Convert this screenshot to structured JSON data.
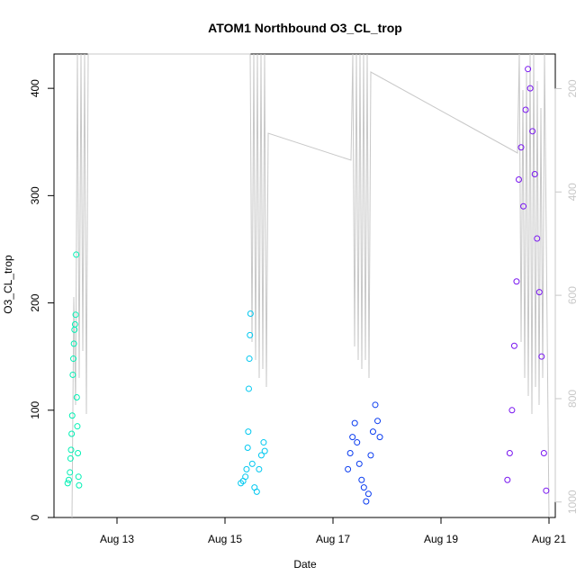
{
  "chart_data": {
    "type": "scatter",
    "title": "ATOM1 Northbound O3_CL_trop",
    "xlabel": "Date",
    "ylabel": "O3_CL_trop",
    "x_range": [
      "2016-08-12T00:00",
      "2016-08-21T04:00"
    ],
    "ylim": [
      0,
      432
    ],
    "x_ticks": [
      "Aug 13",
      "Aug 15",
      "Aug 17",
      "Aug 19",
      "Aug 21"
    ],
    "y_ticks": [
      0,
      100,
      200,
      300,
      400
    ],
    "right_axis": {
      "label": "",
      "ticks": [
        200,
        400,
        600,
        800,
        1000
      ],
      "range_top": 133,
      "range_bottom": 1030,
      "reversed": true,
      "color": "#c8c8c8"
    },
    "grid": false,
    "legend": "none",
    "series": [
      {
        "color": "#00f0b4",
        "points": [
          {
            "x": "2016-08-12T06:00",
            "y": 32
          },
          {
            "x": "2016-08-12T06:30",
            "y": 35
          },
          {
            "x": "2016-08-12T07:00",
            "y": 42
          },
          {
            "x": "2016-08-12T07:15",
            "y": 55
          },
          {
            "x": "2016-08-12T07:30",
            "y": 63
          },
          {
            "x": "2016-08-12T07:45",
            "y": 78
          },
          {
            "x": "2016-08-12T08:00",
            "y": 95
          },
          {
            "x": "2016-08-12T08:15",
            "y": 133
          },
          {
            "x": "2016-08-12T08:30",
            "y": 148
          },
          {
            "x": "2016-08-12T08:45",
            "y": 162
          },
          {
            "x": "2016-08-12T09:00",
            "y": 175
          },
          {
            "x": "2016-08-12T09:15",
            "y": 180
          },
          {
            "x": "2016-08-12T09:30",
            "y": 189
          },
          {
            "x": "2016-08-12T09:45",
            "y": 245
          },
          {
            "x": "2016-08-12T10:00",
            "y": 112
          },
          {
            "x": "2016-08-12T10:15",
            "y": 85
          },
          {
            "x": "2016-08-12T10:30",
            "y": 60
          },
          {
            "x": "2016-08-12T10:45",
            "y": 38
          },
          {
            "x": "2016-08-12T11:00",
            "y": 30
          }
        ]
      },
      {
        "color": "#00c8f0",
        "points": [
          {
            "x": "2016-08-15T10:00",
            "y": 32
          },
          {
            "x": "2016-08-15T11:00",
            "y": 34
          },
          {
            "x": "2016-08-15T12:00",
            "y": 38
          },
          {
            "x": "2016-08-15T12:30",
            "y": 45
          },
          {
            "x": "2016-08-15T13:00",
            "y": 65
          },
          {
            "x": "2016-08-15T13:15",
            "y": 80
          },
          {
            "x": "2016-08-15T13:30",
            "y": 120
          },
          {
            "x": "2016-08-15T13:45",
            "y": 148
          },
          {
            "x": "2016-08-15T14:00",
            "y": 170
          },
          {
            "x": "2016-08-15T14:15",
            "y": 190
          },
          {
            "x": "2016-08-15T15:00",
            "y": 50
          },
          {
            "x": "2016-08-15T16:00",
            "y": 28
          },
          {
            "x": "2016-08-15T17:00",
            "y": 24
          },
          {
            "x": "2016-08-15T18:00",
            "y": 45
          },
          {
            "x": "2016-08-15T19:00",
            "y": 58
          },
          {
            "x": "2016-08-15T20:00",
            "y": 70
          },
          {
            "x": "2016-08-15T20:30",
            "y": 62
          }
        ]
      },
      {
        "color": "#0a3cf0",
        "points": [
          {
            "x": "2016-08-17T09:00",
            "y": 45
          },
          {
            "x": "2016-08-17T10:00",
            "y": 60
          },
          {
            "x": "2016-08-17T11:00",
            "y": 75
          },
          {
            "x": "2016-08-17T12:00",
            "y": 88
          },
          {
            "x": "2016-08-17T13:00",
            "y": 70
          },
          {
            "x": "2016-08-17T14:00",
            "y": 50
          },
          {
            "x": "2016-08-17T15:00",
            "y": 35
          },
          {
            "x": "2016-08-17T16:00",
            "y": 28
          },
          {
            "x": "2016-08-17T17:00",
            "y": 15
          },
          {
            "x": "2016-08-17T18:00",
            "y": 22
          },
          {
            "x": "2016-08-17T19:00",
            "y": 58
          },
          {
            "x": "2016-08-17T20:00",
            "y": 80
          },
          {
            "x": "2016-08-17T21:00",
            "y": 105
          },
          {
            "x": "2016-08-17T22:00",
            "y": 90
          },
          {
            "x": "2016-08-17T23:00",
            "y": 75
          }
        ]
      },
      {
        "color": "#7814f0",
        "points": [
          {
            "x": "2016-08-20T07:00",
            "y": 35
          },
          {
            "x": "2016-08-20T08:00",
            "y": 60
          },
          {
            "x": "2016-08-20T09:00",
            "y": 100
          },
          {
            "x": "2016-08-20T10:00",
            "y": 160
          },
          {
            "x": "2016-08-20T11:00",
            "y": 220
          },
          {
            "x": "2016-08-20T12:00",
            "y": 315
          },
          {
            "x": "2016-08-20T13:00",
            "y": 345
          },
          {
            "x": "2016-08-20T14:00",
            "y": 290
          },
          {
            "x": "2016-08-20T15:00",
            "y": 380
          },
          {
            "x": "2016-08-20T16:00",
            "y": 418
          },
          {
            "x": "2016-08-20T17:00",
            "y": 400
          },
          {
            "x": "2016-08-20T18:00",
            "y": 360
          },
          {
            "x": "2016-08-20T19:00",
            "y": 320
          },
          {
            "x": "2016-08-20T20:00",
            "y": 260
          },
          {
            "x": "2016-08-20T21:00",
            "y": 210
          },
          {
            "x": "2016-08-20T22:00",
            "y": 150
          },
          {
            "x": "2016-08-20T23:00",
            "y": 60
          },
          {
            "x": "2016-08-21T00:00",
            "y": 25
          }
        ]
      }
    ]
  }
}
